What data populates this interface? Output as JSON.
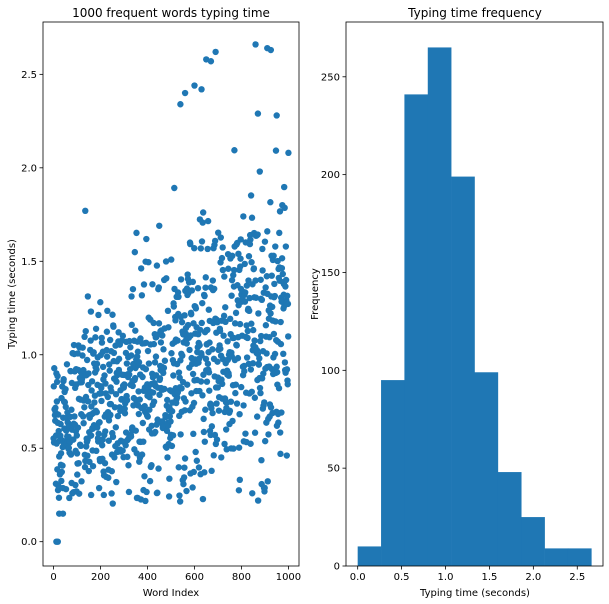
{
  "chart_data": [
    {
      "type": "scatter",
      "title": "1000 frequent words typing time",
      "xlabel": "Word Index",
      "ylabel": "Typing time (seconds)",
      "xlim": [
        -45,
        1045
      ],
      "ylim": [
        -0.13,
        2.78
      ],
      "xticks": [
        0,
        200,
        400,
        600,
        800,
        1000
      ],
      "yticks": [
        0.0,
        0.5,
        1.0,
        1.5,
        2.0,
        2.5
      ],
      "color": "#1f77b4",
      "num_points": 1000,
      "note_points": [
        {
          "x": 12,
          "y": 0.0
        },
        {
          "x": 18,
          "y": 0.0
        },
        {
          "x": 24,
          "y": 0.15
        },
        {
          "x": 40,
          "y": 0.15
        },
        {
          "x": 860,
          "y": 2.66
        },
        {
          "x": 910,
          "y": 2.64
        },
        {
          "x": 925,
          "y": 2.63
        },
        {
          "x": 690,
          "y": 2.62
        },
        {
          "x": 650,
          "y": 2.58
        },
        {
          "x": 670,
          "y": 2.57
        },
        {
          "x": 560,
          "y": 2.4
        },
        {
          "x": 540,
          "y": 2.34
        },
        {
          "x": 600,
          "y": 2.44
        },
        {
          "x": 630,
          "y": 2.42
        },
        {
          "x": 870,
          "y": 2.29
        },
        {
          "x": 950,
          "y": 2.28
        },
        {
          "x": 135,
          "y": 1.77
        },
        {
          "x": 1000,
          "y": 2.08
        },
        {
          "x": 160,
          "y": 0.25
        },
        {
          "x": 440,
          "y": 0.26
        }
      ]
    },
    {
      "type": "bar",
      "title": "Typing time frequency",
      "xlabel": "Typing time (seconds)",
      "ylabel": "Frequency",
      "bin_edges": [
        0.0,
        0.266,
        0.532,
        0.798,
        1.064,
        1.33,
        1.596,
        1.862,
        2.128,
        2.394,
        2.66
      ],
      "values": [
        10,
        95,
        241,
        265,
        199,
        99,
        48,
        25,
        9,
        9
      ],
      "xlim": [
        -0.133,
        2.793
      ],
      "ylim": [
        0,
        278
      ],
      "xticks": [
        0.0,
        0.5,
        1.0,
        1.5,
        2.0,
        2.5
      ],
      "yticks": [
        0,
        50,
        100,
        150,
        200,
        250
      ],
      "color": "#1f77b4"
    }
  ]
}
